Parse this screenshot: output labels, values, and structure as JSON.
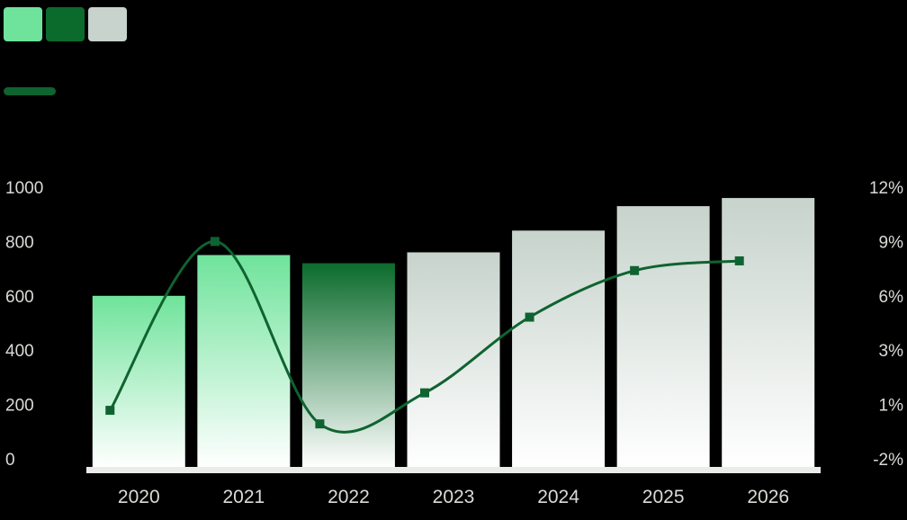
{
  "chart_data": {
    "type": "bar",
    "title": "",
    "xlabel": "",
    "ylabel": "",
    "categories": [
      "2020",
      "2021",
      "2022",
      "2023",
      "2024",
      "2025",
      "2026"
    ],
    "series": [
      {
        "values": [
          600,
          750,
          720,
          760,
          840,
          930,
          960
        ],
        "colors": [
          "#6fe39b",
          "#6fe39b",
          "#0b6b2c",
          "#c7d3cc",
          "#c7d3cc",
          "#c7d3cc",
          "#c7d3cc"
        ],
        "axis": "left"
      },
      {
        "values": [
          0.5,
          9.2,
          -0.2,
          1.4,
          5.3,
          7.7,
          8.2
        ],
        "color": "#0f6330",
        "axis": "right"
      }
    ],
    "ylim": [
      0,
      1000
    ],
    "y_ticks": [
      "0",
      "200",
      "400",
      "600",
      "800",
      "1000"
    ],
    "y2lim": [
      -2,
      12
    ],
    "y2_ticks": [
      "-2%",
      "1%",
      "3%",
      "6%",
      "9%",
      "12%"
    ],
    "legend_top": {
      "swatches": [
        "#6fe39b",
        "#0b6b2c",
        "#c7d3cc"
      ],
      "label": "",
      "line_color": "#0f6330",
      "line_label": ""
    },
    "grid": false,
    "legend_position": "top-left"
  }
}
